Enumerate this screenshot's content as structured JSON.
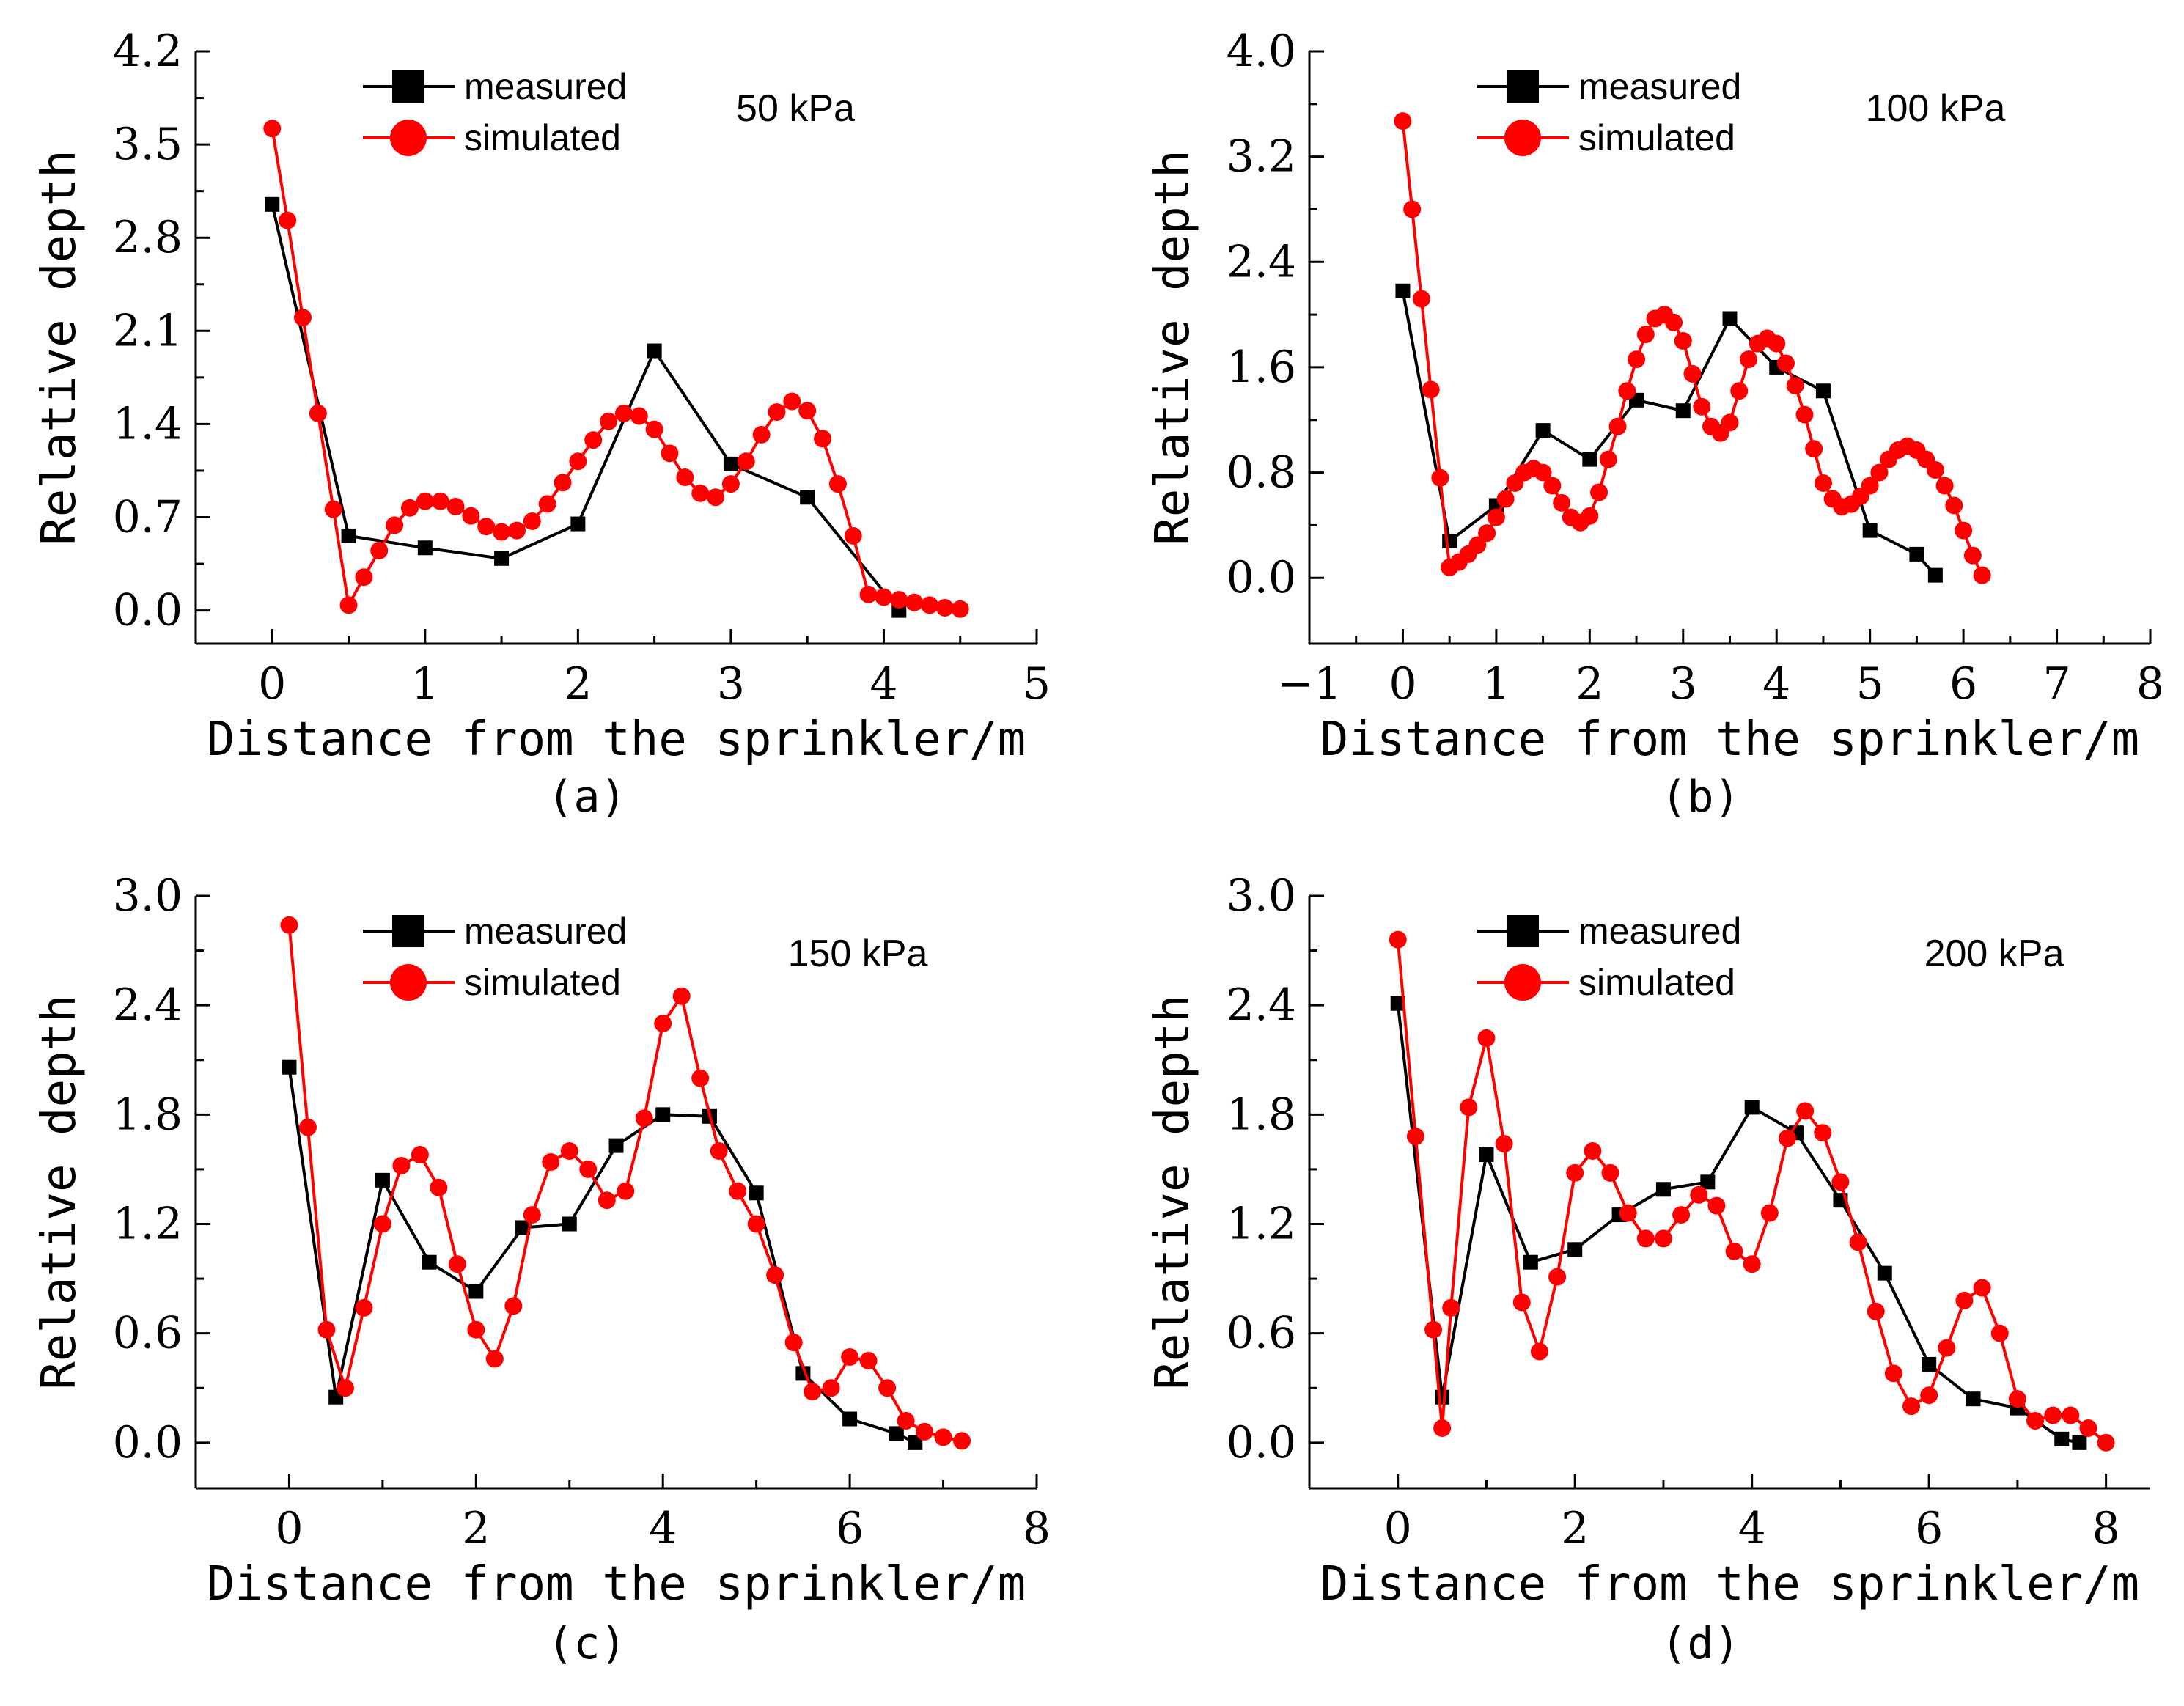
{
  "chart_data": [
    {
      "type": "line",
      "panel_label": "(a)",
      "annotation": "50 kPa",
      "xlabel": "Distance from the sprinkler/m",
      "ylabel": "Relative depth",
      "xlim": [
        -0.5,
        5
      ],
      "ylim": [
        -0.25,
        4.2
      ],
      "xticks": [
        0,
        1,
        2,
        3,
        4,
        5
      ],
      "yticks": [
        0.0,
        0.7,
        1.4,
        2.1,
        2.8,
        3.5,
        4.2
      ],
      "xtick_labels": [
        "0",
        "1",
        "2",
        "3",
        "4",
        "5"
      ],
      "ytick_labels": [
        "0.0",
        "0.7",
        "1.4",
        "2.1",
        "2.8",
        "3.5",
        "4.2"
      ],
      "legend": [
        "measured",
        "simulated"
      ],
      "series": [
        {
          "name": "measured",
          "color": "#000000",
          "marker": "square",
          "x": [
            0,
            0.5,
            1,
            1.5,
            2,
            2.5,
            3,
            3.5,
            4.1
          ],
          "y": [
            3.05,
            0.56,
            0.47,
            0.39,
            0.65,
            1.95,
            1.1,
            0.85,
            0.0
          ]
        },
        {
          "name": "simulated",
          "color": "#ff0000",
          "marker": "circle",
          "x": [
            0,
            0.1,
            0.2,
            0.3,
            0.4,
            0.5,
            0.6,
            0.7,
            0.8,
            0.9,
            1.0,
            1.1,
            1.2,
            1.3,
            1.4,
            1.5,
            1.6,
            1.7,
            1.8,
            1.9,
            2.0,
            2.1,
            2.2,
            2.3,
            2.4,
            2.5,
            2.6,
            2.7,
            2.8,
            2.9,
            3.0,
            3.1,
            3.2,
            3.3,
            3.4,
            3.5,
            3.6,
            3.7,
            3.8,
            3.9,
            4.0,
            4.1,
            4.2,
            4.3,
            4.4,
            4.5
          ],
          "y": [
            3.62,
            2.93,
            2.2,
            1.48,
            0.76,
            0.04,
            0.25,
            0.45,
            0.64,
            0.77,
            0.82,
            0.82,
            0.78,
            0.71,
            0.63,
            0.59,
            0.6,
            0.67,
            0.8,
            0.96,
            1.12,
            1.28,
            1.42,
            1.48,
            1.46,
            1.36,
            1.18,
            1.0,
            0.88,
            0.85,
            0.95,
            1.12,
            1.32,
            1.49,
            1.57,
            1.5,
            1.29,
            0.95,
            0.56,
            0.12,
            0.1,
            0.08,
            0.06,
            0.04,
            0.02,
            0.01
          ]
        }
      ]
    },
    {
      "type": "line",
      "panel_label": "(b)",
      "annotation": "100 kPa",
      "xlabel": "Distance from the sprinkler/m",
      "ylabel": "Relative depth",
      "xlim": [
        -1,
        8
      ],
      "ylim": [
        -0.5,
        4.0
      ],
      "xticks": [
        -1,
        0,
        1,
        2,
        3,
        4,
        5,
        6,
        7,
        8
      ],
      "yticks": [
        0.0,
        0.8,
        1.6,
        2.4,
        3.2,
        4.0
      ],
      "xtick_labels": [
        "−1",
        "0",
        "1",
        "2",
        "3",
        "4",
        "5",
        "6",
        "7",
        "8"
      ],
      "ytick_labels": [
        "0.0",
        "0.8",
        "1.6",
        "2.4",
        "3.2",
        "4.0"
      ],
      "legend": [
        "measured",
        "simulated"
      ],
      "series": [
        {
          "name": "measured",
          "color": "#000000",
          "marker": "square",
          "x": [
            0,
            0.5,
            1,
            1.5,
            2,
            2.5,
            3,
            3.5,
            4,
            4.5,
            5,
            5.5,
            5.7
          ],
          "y": [
            2.18,
            0.28,
            0.55,
            1.12,
            0.9,
            1.35,
            1.27,
            1.97,
            1.6,
            1.42,
            0.36,
            0.18,
            0.02
          ]
        },
        {
          "name": "simulated",
          "color": "#ff0000",
          "marker": "circle",
          "x": [
            0,
            0.1,
            0.2,
            0.3,
            0.4,
            0.5,
            0.6,
            0.7,
            0.8,
            0.9,
            1.0,
            1.1,
            1.2,
            1.3,
            1.4,
            1.5,
            1.6,
            1.7,
            1.8,
            1.9,
            2.0,
            2.1,
            2.2,
            2.3,
            2.4,
            2.5,
            2.6,
            2.7,
            2.8,
            2.9,
            3.0,
            3.1,
            3.2,
            3.3,
            3.4,
            3.5,
            3.6,
            3.7,
            3.8,
            3.9,
            4.0,
            4.1,
            4.2,
            4.3,
            4.4,
            4.5,
            4.6,
            4.7,
            4.8,
            4.9,
            5.0,
            5.1,
            5.2,
            5.3,
            5.4,
            5.5,
            5.6,
            5.7,
            5.8,
            5.9,
            6.0,
            6.1,
            6.2
          ],
          "y": [
            3.47,
            2.8,
            2.12,
            1.43,
            0.76,
            0.08,
            0.12,
            0.18,
            0.25,
            0.34,
            0.46,
            0.6,
            0.72,
            0.8,
            0.83,
            0.8,
            0.7,
            0.57,
            0.46,
            0.42,
            0.47,
            0.65,
            0.9,
            1.15,
            1.42,
            1.66,
            1.85,
            1.97,
            2.0,
            1.94,
            1.8,
            1.55,
            1.3,
            1.15,
            1.1,
            1.18,
            1.42,
            1.66,
            1.78,
            1.82,
            1.78,
            1.63,
            1.46,
            1.24,
            0.98,
            0.72,
            0.6,
            0.54,
            0.56,
            0.62,
            0.7,
            0.8,
            0.9,
            0.97,
            1.0,
            0.97,
            0.9,
            0.82,
            0.7,
            0.55,
            0.36,
            0.17,
            0.02
          ]
        }
      ]
    },
    {
      "type": "line",
      "panel_label": "(c)",
      "annotation": "150 kPa",
      "xlabel": "Distance from the sprinkler/m",
      "ylabel": "Relative depth",
      "xlim": [
        -1,
        8
      ],
      "ylim": [
        -0.25,
        3.0
      ],
      "xticks": [
        0,
        2,
        4,
        6,
        8
      ],
      "yticks": [
        0.0,
        0.6,
        1.2,
        1.8,
        2.4,
        3.0
      ],
      "xtick_labels": [
        "0",
        "2",
        "4",
        "6",
        "8"
      ],
      "ytick_labels": [
        "0.0",
        "0.6",
        "1.2",
        "1.8",
        "2.4",
        "3.0"
      ],
      "legend": [
        "measured",
        "simulated"
      ],
      "series": [
        {
          "name": "measured",
          "color": "#000000",
          "marker": "square",
          "x": [
            0,
            0.5,
            1,
            1.5,
            2,
            2.5,
            3,
            3.5,
            4,
            4.5,
            5,
            5.5,
            6,
            6.5,
            6.7
          ],
          "y": [
            2.06,
            0.25,
            1.44,
            0.99,
            0.83,
            1.18,
            1.2,
            1.63,
            1.8,
            1.79,
            1.37,
            0.38,
            0.13,
            0.05,
            0.0
          ]
        },
        {
          "name": "simulated",
          "color": "#ff0000",
          "marker": "circle",
          "x": [
            0,
            0.2,
            0.4,
            0.6,
            0.8,
            1.0,
            1.2,
            1.4,
            1.6,
            1.8,
            2.0,
            2.2,
            2.4,
            2.6,
            2.8,
            3.0,
            3.2,
            3.4,
            3.6,
            3.8,
            4.0,
            4.2,
            4.4,
            4.6,
            4.8,
            5.0,
            5.2,
            5.4,
            5.6,
            5.8,
            6.0,
            6.2,
            6.4,
            6.6,
            6.8,
            7.0,
            7.2
          ],
          "y": [
            2.84,
            1.73,
            0.62,
            0.3,
            0.74,
            1.2,
            1.52,
            1.58,
            1.4,
            0.98,
            0.62,
            0.46,
            0.75,
            1.25,
            1.54,
            1.6,
            1.5,
            1.33,
            1.38,
            1.78,
            2.3,
            2.45,
            2.0,
            1.6,
            1.38,
            1.2,
            0.92,
            0.55,
            0.28,
            0.3,
            0.47,
            0.45,
            0.3,
            0.12,
            0.06,
            0.03,
            0.01
          ]
        }
      ]
    },
    {
      "type": "line",
      "panel_label": "(d)",
      "annotation": "200 kPa",
      "xlabel": "Distance from the sprinkler/m",
      "ylabel": "Relative depth",
      "xlim": [
        -1,
        8.5
      ],
      "ylim": [
        -0.25,
        3.0
      ],
      "xticks": [
        0,
        2,
        4,
        6,
        8
      ],
      "yticks": [
        0.0,
        0.6,
        1.2,
        1.8,
        2.4,
        3.0
      ],
      "xtick_labels": [
        "0",
        "2",
        "4",
        "6",
        "8"
      ],
      "ytick_labels": [
        "0.0",
        "0.6",
        "1.2",
        "1.8",
        "2.4",
        "3.0"
      ],
      "legend": [
        "measured",
        "simulated"
      ],
      "series": [
        {
          "name": "measured",
          "color": "#000000",
          "marker": "square",
          "x": [
            0,
            0.5,
            1,
            1.5,
            2,
            2.5,
            3,
            3.5,
            4,
            4.5,
            5,
            5.5,
            6,
            6.5,
            7,
            7.5,
            7.7
          ],
          "y": [
            2.41,
            0.25,
            1.58,
            0.99,
            1.06,
            1.25,
            1.39,
            1.43,
            1.84,
            1.7,
            1.33,
            0.93,
            0.43,
            0.24,
            0.19,
            0.02,
            0.0
          ]
        },
        {
          "name": "simulated",
          "color": "#ff0000",
          "marker": "circle",
          "x": [
            0,
            0.2,
            0.4,
            0.5,
            0.6,
            0.8,
            1.0,
            1.2,
            1.4,
            1.6,
            1.8,
            2.0,
            2.2,
            2.4,
            2.6,
            2.8,
            3.0,
            3.2,
            3.4,
            3.6,
            3.8,
            4.0,
            4.2,
            4.4,
            4.6,
            4.8,
            5.0,
            5.2,
            5.4,
            5.6,
            5.8,
            6.0,
            6.2,
            6.4,
            6.6,
            6.8,
            7.0,
            7.2,
            7.4,
            7.6,
            7.8,
            8.0
          ],
          "y": [
            2.76,
            1.68,
            0.62,
            0.08,
            0.74,
            1.84,
            2.22,
            1.64,
            0.77,
            0.5,
            0.91,
            1.48,
            1.6,
            1.48,
            1.26,
            1.12,
            1.12,
            1.25,
            1.36,
            1.3,
            1.05,
            0.98,
            1.26,
            1.67,
            1.82,
            1.7,
            1.43,
            1.1,
            0.72,
            0.38,
            0.2,
            0.26,
            0.52,
            0.78,
            0.85,
            0.6,
            0.24,
            0.12,
            0.15,
            0.15,
            0.08,
            0.0
          ]
        }
      ]
    }
  ]
}
